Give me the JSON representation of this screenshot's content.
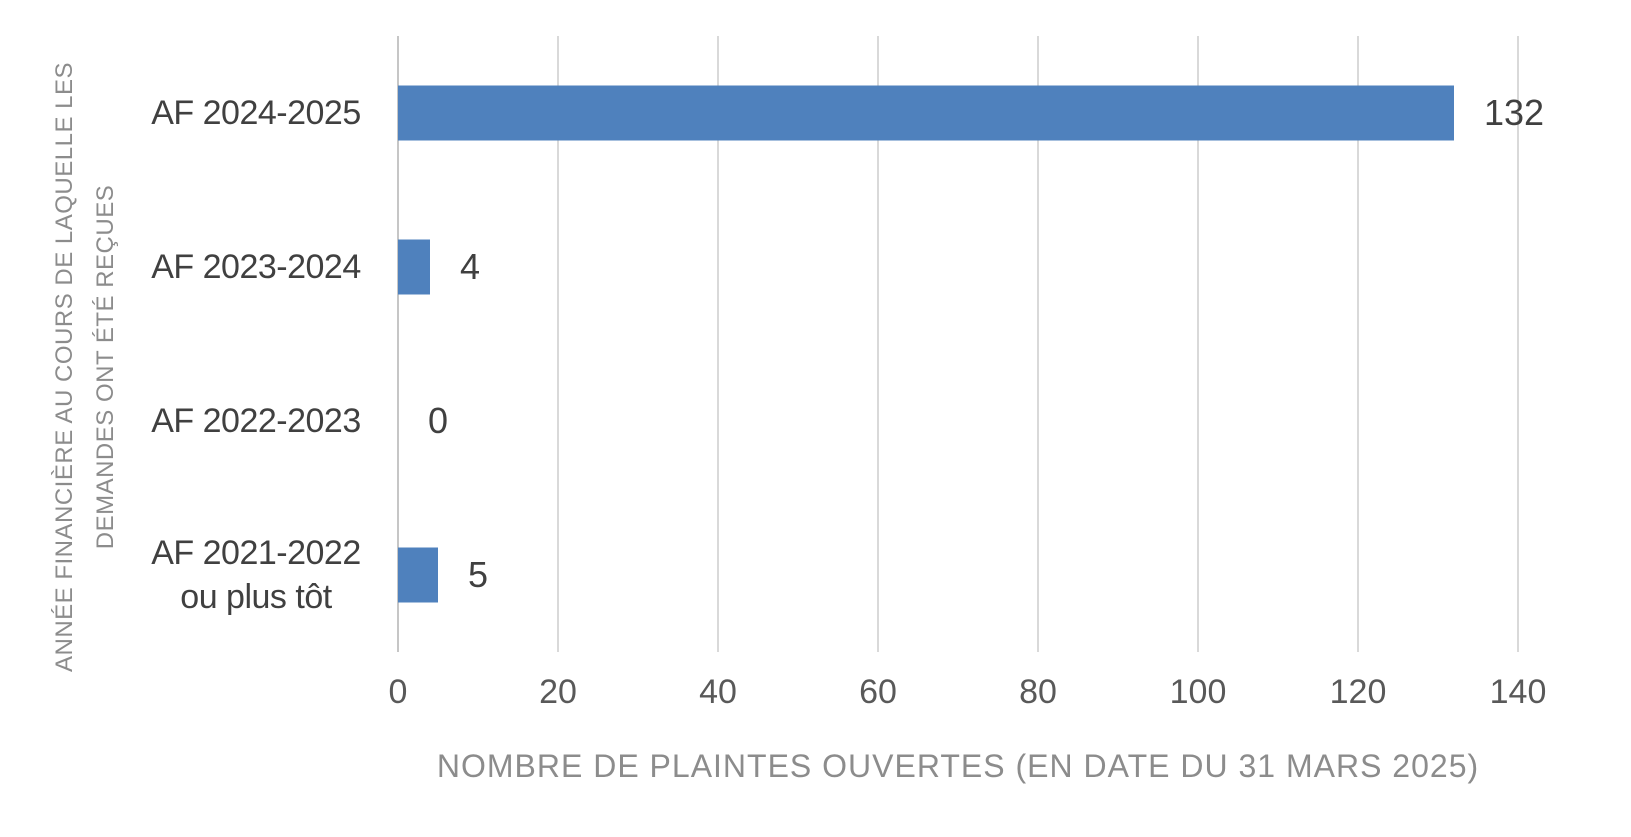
{
  "chart_data": {
    "type": "bar",
    "orientation": "horizontal",
    "categories": [
      "AF 2024-2025",
      "AF 2023-2024",
      "AF 2022-2023",
      "AF 2021-2022\nou plus tôt"
    ],
    "values": [
      132,
      4,
      0,
      5
    ],
    "data_labels": [
      "132",
      "4",
      "0",
      "5"
    ],
    "xlabel": "NOMBRE DE PLAINTES OUVERTES (EN DATE DU 31 MARS 2025)",
    "ylabel": "ANNÉE FINANCIÈRE AU COURS DE LAQUELLE LES DEMANDES ONT ÉTÉ REÇUES",
    "ylabel_lines": [
      "ANNÉE FINANCIÈRE AU COURS DE LAQUELLE LES",
      "DEMANDES ONT ÉTÉ REÇUES"
    ],
    "xlim": [
      0,
      140
    ],
    "xticks": [
      0,
      20,
      40,
      60,
      80,
      100,
      120,
      140
    ],
    "grid": true,
    "legend": false,
    "data_labels_shown": true,
    "colors": {
      "bar": "#4F81BD",
      "gridline": "#D9D9D9",
      "axis_line": "#C6C6C6",
      "label_text": "#404040",
      "tick_text": "#595959",
      "axis_title_text": "#8C8C8C",
      "background": "#FFFFFF"
    }
  }
}
